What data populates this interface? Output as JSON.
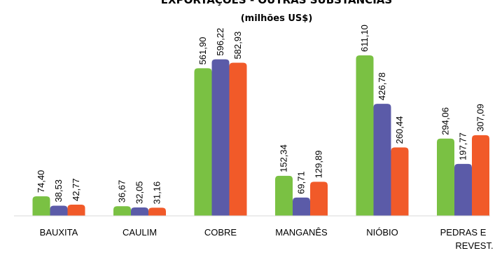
{
  "chart_data": {
    "type": "bar",
    "title": "EXPORTAÇÕES - OUTRAS SUBSTÂNCIAS",
    "subtitle": "(milhões US$)",
    "categories": [
      "BAUXITA",
      "CAULIM",
      "COBRE",
      "MANGANÊS",
      "NIÓBIO",
      "PEDRAS E REVEST."
    ],
    "series": [
      {
        "values": [
          74.4,
          36.67,
          561.9,
          152.34,
          611.1,
          294.06
        ],
        "color": "#7ac143"
      },
      {
        "values": [
          38.53,
          32.05,
          596.22,
          69.71,
          426.78,
          197.77
        ],
        "color": "#5b5ba8"
      },
      {
        "values": [
          42.77,
          31.16,
          582.93,
          129.89,
          260.44,
          307.09
        ],
        "color": "#f15a29"
      }
    ],
    "value_labels": [
      [
        "74,40",
        "36,67",
        "561,90",
        "152,34",
        "611,10",
        "294,06"
      ],
      [
        "38,53",
        "32,05",
        "596,22",
        "69,71",
        "426,78",
        "197,77"
      ],
      [
        "42,77",
        "31,16",
        "582,93",
        "129,89",
        "260,44",
        "307,09"
      ]
    ],
    "ylim": [
      0,
      620
    ],
    "grid": false,
    "legend": "none"
  }
}
